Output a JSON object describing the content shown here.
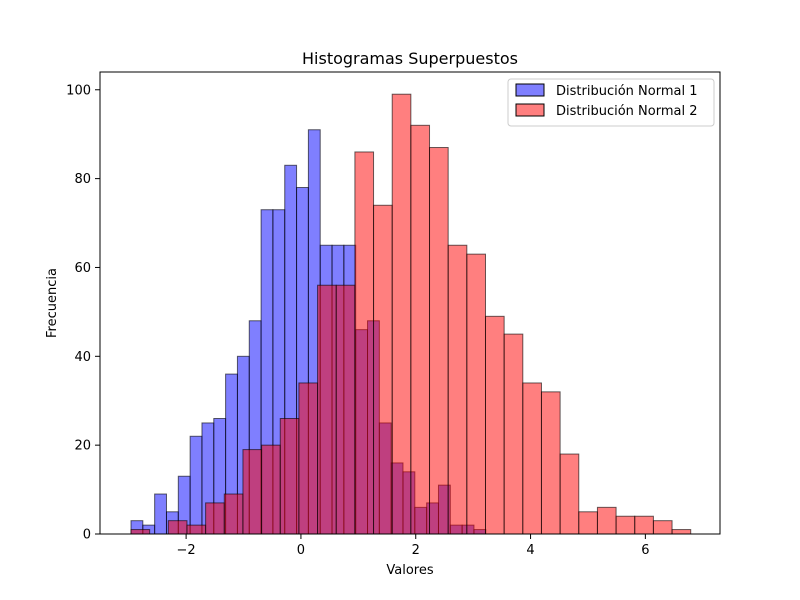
{
  "chart_data": {
    "type": "bar",
    "title": "Histogramas Superpuestos",
    "xlabel": "Valores",
    "ylabel": "Frecuencia",
    "xlim": [
      -3.5,
      7.3
    ],
    "ylim": [
      0,
      104
    ],
    "xticks": [
      -2,
      0,
      2,
      4,
      6
    ],
    "xtick_labels": [
      "−2",
      "0",
      "2",
      "4",
      "6"
    ],
    "yticks": [
      0,
      20,
      40,
      60,
      80,
      100
    ],
    "ytick_labels": [
      "0",
      "20",
      "40",
      "60",
      "80",
      "100"
    ],
    "grid": false,
    "legend_position": "top-right",
    "series": [
      {
        "name": "Distribución Normal 1",
        "color": "#0000ff",
        "opacity": 0.5,
        "bin_start": -2.96,
        "bin_width": 0.206,
        "values": [
          3,
          2,
          9,
          5,
          13,
          22,
          25,
          26,
          36,
          40,
          48,
          73,
          73,
          83,
          78,
          91,
          65,
          65,
          65,
          46,
          48,
          25,
          16,
          14,
          6,
          7,
          11,
          2,
          2,
          1
        ]
      },
      {
        "name": "Distribución Normal 2",
        "color": "#ff0000",
        "opacity": 0.5,
        "bin_start": -2.96,
        "bin_width": 0.325,
        "values": [
          1,
          0,
          3,
          2,
          7,
          9,
          19,
          20,
          26,
          34,
          56,
          56,
          86,
          74,
          99,
          92,
          87,
          65,
          63,
          49,
          45,
          34,
          32,
          18,
          5,
          6,
          4,
          4,
          3,
          1
        ]
      }
    ]
  }
}
